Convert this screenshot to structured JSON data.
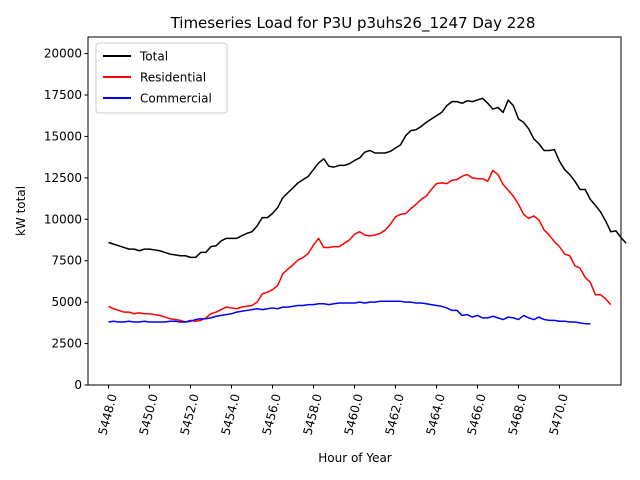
{
  "chart_data": {
    "type": "line",
    "title": "Timeseries Load for P3U p3uhs26_1247  Day 228",
    "xlabel": "Hour of Year",
    "ylabel": "kW total",
    "xlim": [
      5447.0,
      5473.0
    ],
    "ylim": [
      0,
      21000
    ],
    "x_ticks": [
      5448,
      5450,
      5452,
      5454,
      5456,
      5458,
      5460,
      5462,
      5464,
      5466,
      5468,
      5470
    ],
    "x_tick_labels": [
      "5448.0",
      "5450.0",
      "5452.0",
      "5454.0",
      "5456.0",
      "5458.0",
      "5460.0",
      "5462.0",
      "5464.0",
      "5466.0",
      "5468.0",
      "5470.0"
    ],
    "y_ticks": [
      0,
      2500,
      5000,
      7500,
      10000,
      12500,
      15000,
      17500,
      20000
    ],
    "y_tick_labels": [
      "0",
      "2500",
      "5000",
      "7500",
      "10000",
      "12500",
      "15000",
      "17500",
      "20000"
    ],
    "legend_position": "top-left",
    "x_start": 5448.0,
    "x_step": 0.25,
    "series": [
      {
        "name": "Total",
        "color": "#000000",
        "values": [
          8600,
          8500,
          8400,
          8300,
          8200,
          8200,
          8100,
          8200,
          8200,
          8150,
          8100,
          8000,
          7900,
          7850,
          7800,
          7800,
          7700,
          7700,
          8000,
          8000,
          8350,
          8400,
          8700,
          8850,
          8850,
          8850,
          9000,
          9150,
          9250,
          9600,
          10100,
          10100,
          10350,
          10700,
          11300,
          11600,
          11900,
          12200,
          12400,
          12600,
          13000,
          13400,
          13650,
          13200,
          13150,
          13250,
          13250,
          13350,
          13550,
          13700,
          14050,
          14150,
          14000,
          14000,
          14000,
          14100,
          14300,
          14500,
          15050,
          15350,
          15400,
          15600,
          15850,
          16050,
          16250,
          16450,
          16850,
          17100,
          17100,
          17000,
          17150,
          17100,
          17200,
          17300,
          17000,
          16650,
          16750,
          16450,
          17200,
          16850,
          16050,
          15850,
          15450,
          14850,
          14550,
          14150,
          14150,
          14200,
          13500,
          13000,
          12700,
          12300,
          11800,
          11800,
          11200,
          10850,
          10450,
          9900,
          9250,
          9300,
          8900,
          8550
        ]
      },
      {
        "name": "Residential",
        "color": "#ff0000",
        "values": [
          4750,
          4600,
          4500,
          4400,
          4400,
          4300,
          4350,
          4300,
          4300,
          4250,
          4200,
          4100,
          4000,
          3950,
          3900,
          3800,
          3900,
          3850,
          3900,
          4050,
          4300,
          4400,
          4550,
          4700,
          4650,
          4600,
          4700,
          4750,
          4800,
          5000,
          5500,
          5600,
          5750,
          6000,
          6700,
          7000,
          7250,
          7550,
          7700,
          7950,
          8450,
          8850,
          8300,
          8300,
          8350,
          8350,
          8550,
          8750,
          9100,
          9250,
          9050,
          9000,
          9050,
          9150,
          9350,
          9700,
          10150,
          10300,
          10350,
          10650,
          10900,
          11200,
          11400,
          11800,
          12150,
          12200,
          12150,
          12350,
          12400,
          12600,
          12700,
          12500,
          12450,
          12450,
          12300,
          12950,
          12700,
          12100,
          11750,
          11400,
          10900,
          10300,
          10050,
          10200,
          9950,
          9350,
          9050,
          8650,
          8350,
          7900,
          7800,
          7200,
          7050,
          6500,
          6200,
          5450,
          5450,
          5200,
          4850
        ]
      },
      {
        "name": "Commercial",
        "color": "#0000ff",
        "values": [
          3800,
          3850,
          3800,
          3800,
          3850,
          3800,
          3800,
          3850,
          3800,
          3800,
          3800,
          3800,
          3850,
          3850,
          3800,
          3800,
          3850,
          3950,
          4000,
          4000,
          4050,
          4150,
          4200,
          4250,
          4300,
          4400,
          4450,
          4500,
          4550,
          4600,
          4550,
          4600,
          4650,
          4600,
          4700,
          4700,
          4750,
          4800,
          4800,
          4850,
          4850,
          4900,
          4900,
          4850,
          4900,
          4950,
          4950,
          4950,
          4950,
          5000,
          4950,
          5000,
          5000,
          5050,
          5050,
          5050,
          5050,
          5050,
          5000,
          5000,
          4950,
          4950,
          4900,
          4850,
          4800,
          4750,
          4650,
          4500,
          4500,
          4200,
          4250,
          4100,
          4200,
          4050,
          4050,
          4150,
          4050,
          3950,
          4100,
          4050,
          3950,
          4200,
          4050,
          3950,
          4100,
          3950,
          3900,
          3900,
          3850,
          3850,
          3800,
          3800,
          3750,
          3700,
          3700
        ]
      }
    ]
  }
}
